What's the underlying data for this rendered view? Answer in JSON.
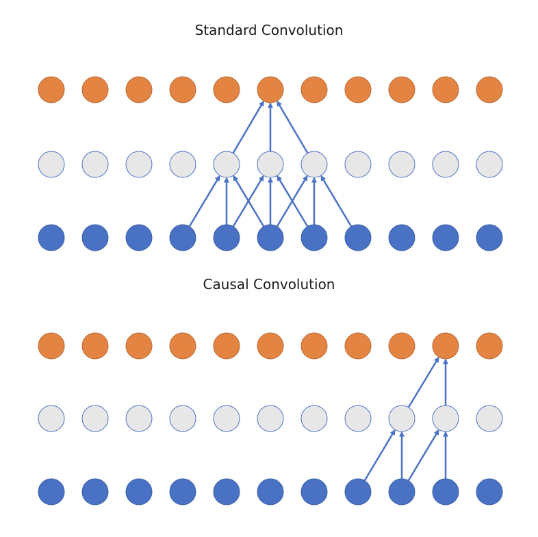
{
  "panels": [
    {
      "title": "Standard Convolution",
      "node_count": 11,
      "layers": [
        "output",
        "hidden",
        "input"
      ],
      "connections": [
        {
          "from_layer": "hidden",
          "from": 4,
          "to_layer": "output",
          "to": 5
        },
        {
          "from_layer": "hidden",
          "from": 5,
          "to_layer": "output",
          "to": 5
        },
        {
          "from_layer": "hidden",
          "from": 6,
          "to_layer": "output",
          "to": 5
        },
        {
          "from_layer": "input",
          "from": 3,
          "to_layer": "hidden",
          "to": 4
        },
        {
          "from_layer": "input",
          "from": 4,
          "to_layer": "hidden",
          "to": 4
        },
        {
          "from_layer": "input",
          "from": 5,
          "to_layer": "hidden",
          "to": 4
        },
        {
          "from_layer": "input",
          "from": 4,
          "to_layer": "hidden",
          "to": 5
        },
        {
          "from_layer": "input",
          "from": 5,
          "to_layer": "hidden",
          "to": 5
        },
        {
          "from_layer": "input",
          "from": 6,
          "to_layer": "hidden",
          "to": 5
        },
        {
          "from_layer": "input",
          "from": 5,
          "to_layer": "hidden",
          "to": 6
        },
        {
          "from_layer": "input",
          "from": 6,
          "to_layer": "hidden",
          "to": 6
        },
        {
          "from_layer": "input",
          "from": 7,
          "to_layer": "hidden",
          "to": 6
        }
      ]
    },
    {
      "title": "Causal Convolution",
      "node_count": 11,
      "layers": [
        "output",
        "hidden",
        "input"
      ],
      "connections": [
        {
          "from_layer": "hidden",
          "from": 8,
          "to_layer": "output",
          "to": 9
        },
        {
          "from_layer": "hidden",
          "from": 9,
          "to_layer": "output",
          "to": 9
        },
        {
          "from_layer": "input",
          "from": 7,
          "to_layer": "hidden",
          "to": 8
        },
        {
          "from_layer": "input",
          "from": 8,
          "to_layer": "hidden",
          "to": 8
        },
        {
          "from_layer": "input",
          "from": 8,
          "to_layer": "hidden",
          "to": 9
        },
        {
          "from_layer": "input",
          "from": 9,
          "to_layer": "hidden",
          "to": 9
        }
      ]
    }
  ],
  "colors": {
    "output_fill": "#E48443",
    "output_stroke": "#B76A36",
    "hidden_fill": "#E7E7E7",
    "hidden_stroke": "#4A72C4",
    "input_fill": "#4A72C4",
    "input_stroke": "#3A5FA6",
    "arrow": "#4A72C4"
  }
}
